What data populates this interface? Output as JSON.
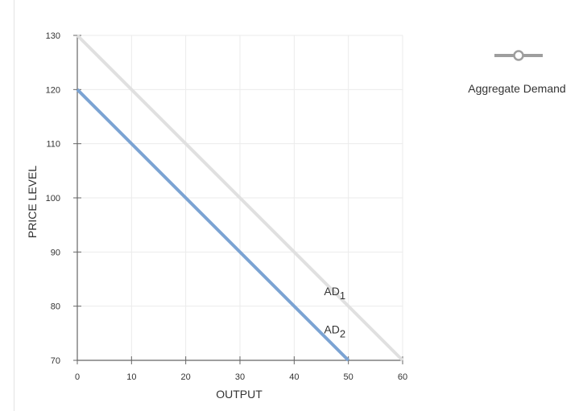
{
  "chart_data": {
    "type": "line",
    "xlabel": "OUTPUT",
    "ylabel": "PRICE LEVEL",
    "xlim": [
      0,
      60
    ],
    "ylim": [
      70,
      130
    ],
    "x_ticks": [
      "0",
      "10",
      "20",
      "30",
      "40",
      "50",
      "60"
    ],
    "y_ticks": [
      "70",
      "80",
      "90",
      "100",
      "110",
      "120",
      "130"
    ],
    "grid": true,
    "series": [
      {
        "label_main": "AD",
        "label_sub": "1",
        "color": "#e0e0e0",
        "points": [
          [
            0,
            130
          ],
          [
            60,
            70
          ]
        ],
        "label_at": [
          45.5,
          82
        ]
      },
      {
        "label_main": "AD",
        "label_sub": "2",
        "color": "#7ba3d3",
        "points": [
          [
            0,
            120
          ],
          [
            50,
            70
          ]
        ],
        "label_at": [
          45.5,
          75
        ]
      }
    ],
    "legend": {
      "label": "Aggregate Demand",
      "position": "right",
      "color": "#9e9e9e"
    }
  }
}
